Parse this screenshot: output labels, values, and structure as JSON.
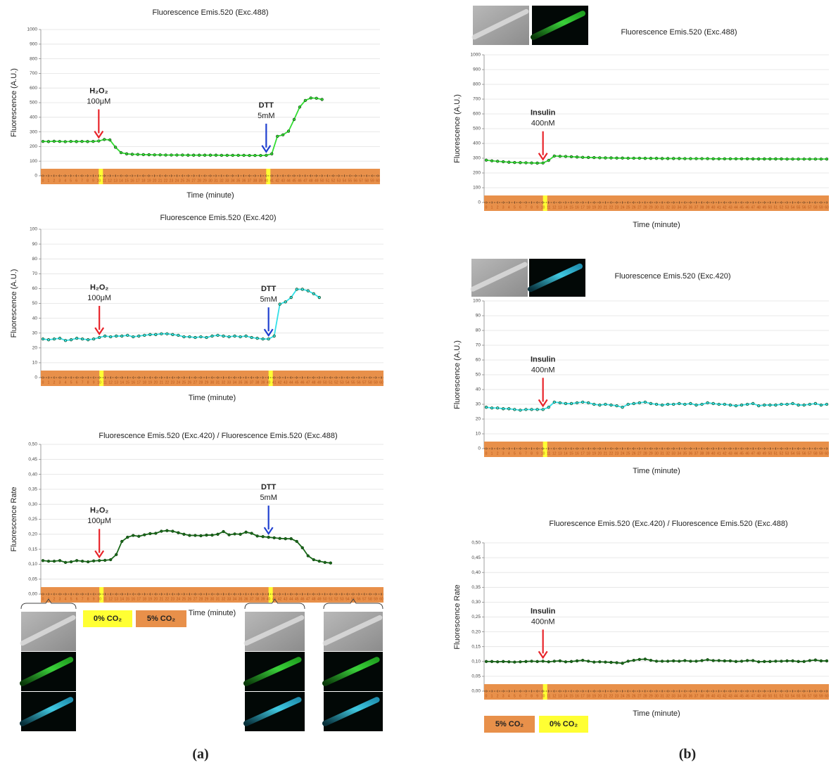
{
  "chart_data": [
    {
      "type": "line",
      "title": "Fluorescence Emis.520 (Exc.488)",
      "x_label": "Time (minute)",
      "y_label": "Fluorescence (A.U.)",
      "x": [
        0,
        1,
        2,
        3,
        4,
        5,
        6,
        7,
        8,
        9,
        10,
        11,
        12,
        13,
        14,
        15,
        16,
        17,
        18,
        19,
        20,
        21,
        22,
        23,
        24,
        25,
        26,
        27,
        28,
        29,
        30,
        31,
        32,
        33,
        34,
        35,
        36,
        37,
        38,
        39,
        40,
        41,
        42,
        43,
        44,
        45,
        46,
        47,
        48,
        49,
        50,
        51,
        52,
        53,
        54,
        55,
        56,
        57,
        58,
        59,
        60
      ],
      "xlim": [
        0,
        60
      ],
      "ylim": [
        0,
        1000
      ],
      "yticks": [
        0,
        100,
        200,
        300,
        400,
        500,
        600,
        700,
        800,
        900,
        1000
      ],
      "grid": true,
      "series": [
        {
          "color": "#33dd33",
          "values": [
            235,
            234,
            236,
            235,
            233,
            235,
            234,
            235,
            234,
            235,
            238,
            248,
            245,
            195,
            158,
            150,
            147,
            146,
            145,
            144,
            143,
            143,
            142,
            142,
            142,
            142,
            141,
            141,
            141,
            141,
            141,
            141,
            140,
            140,
            140,
            140,
            140,
            139,
            139,
            139,
            140,
            150,
            270,
            280,
            305,
            385,
            470,
            515,
            532,
            530,
            522,
            null,
            null,
            null,
            null,
            null,
            null,
            null,
            null,
            null,
            null
          ]
        }
      ],
      "band": {
        "color": "#e8904a",
        "markers": [
          10,
          40
        ],
        "marker_color": "#ffff33"
      },
      "annotations": [
        {
          "label": "H₂O₂",
          "detail": "100μM",
          "x": 10,
          "color": "#e8242a"
        },
        {
          "label": "DTT",
          "detail": "5mM",
          "x": 40,
          "color": "#2040d0"
        }
      ]
    },
    {
      "type": "line",
      "title": "Fluorescence Emis.520 (Exc.420)",
      "x_label": "Time (minute)",
      "y_label": "Fluorescence (A.U.)",
      "x": [
        0,
        1,
        2,
        3,
        4,
        5,
        6,
        7,
        8,
        9,
        10,
        11,
        12,
        13,
        14,
        15,
        16,
        17,
        18,
        19,
        20,
        21,
        22,
        23,
        24,
        25,
        26,
        27,
        28,
        29,
        30,
        31,
        32,
        33,
        34,
        35,
        36,
        37,
        38,
        39,
        40,
        41,
        42,
        43,
        44,
        45,
        46,
        47,
        48,
        49,
        50,
        51,
        52,
        53,
        54,
        55,
        56,
        57,
        58,
        59,
        60
      ],
      "xlim": [
        0,
        60
      ],
      "ylim": [
        0,
        100
      ],
      "yticks": [
        0,
        10,
        20,
        30,
        40,
        50,
        60,
        70,
        80,
        90,
        100
      ],
      "grid": true,
      "series": [
        {
          "color": "#33e0e8",
          "values": [
            26,
            25.5,
            26,
            26.5,
            25,
            25.5,
            26.5,
            26,
            25.5,
            26,
            27,
            28,
            27.5,
            28,
            28,
            28.5,
            27.5,
            28,
            28.5,
            29,
            29,
            29.5,
            29.5,
            29,
            28.5,
            27.5,
            27.5,
            27,
            27.5,
            27,
            28,
            28.5,
            28,
            27.5,
            28,
            27.5,
            28,
            27,
            26.5,
            26,
            26,
            28,
            49.5,
            51,
            54,
            59.5,
            59.5,
            58.5,
            56.5,
            54,
            null,
            null,
            null,
            null,
            null,
            null,
            null,
            null,
            null,
            null,
            null
          ]
        }
      ],
      "band": {
        "color": "#e8904a",
        "markers": [
          10,
          40
        ],
        "marker_color": "#ffff33"
      },
      "annotations": [
        {
          "label": "H₂O₂",
          "detail": "100μM",
          "x": 10,
          "color": "#e8242a"
        },
        {
          "label": "DTT",
          "detail": "5mM",
          "x": 40,
          "color": "#2040d0"
        }
      ]
    },
    {
      "type": "line",
      "title": "Fluorescence Emis.520 (Exc.420) / Fluorescence Emis.520 (Exc.488)",
      "x_label": "Time (minute)",
      "y_label": "Fluorescence Rate",
      "x": [
        0,
        1,
        2,
        3,
        4,
        5,
        6,
        7,
        8,
        9,
        10,
        11,
        12,
        13,
        14,
        15,
        16,
        17,
        18,
        19,
        20,
        21,
        22,
        23,
        24,
        25,
        26,
        27,
        28,
        29,
        30,
        31,
        32,
        33,
        34,
        35,
        36,
        37,
        38,
        39,
        40,
        41,
        42,
        43,
        44,
        45,
        46,
        47,
        48,
        49,
        50,
        51,
        52,
        53,
        54,
        55,
        56,
        57,
        58,
        59,
        60
      ],
      "xlim": [
        0,
        60
      ],
      "ylim": [
        0,
        0.5
      ],
      "yticks": [
        {
          "value": 0,
          "label": "0,00"
        },
        {
          "value": 0.05,
          "label": "0,05"
        },
        {
          "value": 0.1,
          "label": "0,10"
        },
        {
          "value": 0.15,
          "label": "0,15"
        },
        {
          "value": 0.2,
          "label": "0,20"
        },
        {
          "value": 0.25,
          "label": "0,25"
        },
        {
          "value": 0.3,
          "label": "0,30"
        },
        {
          "value": 0.35,
          "label": "0,35"
        },
        {
          "value": 0.4,
          "label": "0,40"
        },
        {
          "value": 0.45,
          "label": "0,45"
        },
        {
          "value": 0.5,
          "label": "0,50"
        }
      ],
      "grid": true,
      "series": [
        {
          "color": "#1a6a1a",
          "values": [
            0.112,
            0.11,
            0.11,
            0.112,
            0.106,
            0.108,
            0.112,
            0.11,
            0.108,
            0.111,
            0.112,
            0.113,
            0.115,
            0.132,
            0.176,
            0.19,
            0.196,
            0.193,
            0.198,
            0.202,
            0.203,
            0.21,
            0.212,
            0.21,
            0.205,
            0.2,
            0.196,
            0.196,
            0.195,
            0.197,
            0.197,
            0.2,
            0.209,
            0.198,
            0.201,
            0.2,
            0.207,
            0.203,
            0.194,
            0.192,
            0.19,
            0.188,
            0.186,
            0.185,
            0.185,
            0.176,
            0.155,
            0.128,
            0.115,
            0.11,
            0.106,
            0.104,
            null,
            null,
            null,
            null,
            null,
            null,
            null,
            null,
            null
          ]
        }
      ],
      "band": {
        "color": "#e8904a",
        "markers": [
          10,
          40
        ],
        "marker_color": "#ffff33"
      },
      "annotations": [
        {
          "label": "H₂O₂",
          "detail": "100μM",
          "x": 10,
          "color": "#e8242a"
        },
        {
          "label": "DTT",
          "detail": "5mM",
          "x": 40,
          "color": "#2040d0"
        }
      ]
    },
    {
      "type": "line",
      "title": "Fluorescence Emis.520 (Exc.488)",
      "x_label": "Time (minute)",
      "y_label": "Fluorescence (A.U.)",
      "x": [
        0,
        1,
        2,
        3,
        4,
        5,
        6,
        7,
        8,
        9,
        10,
        11,
        12,
        13,
        14,
        15,
        16,
        17,
        18,
        19,
        20,
        21,
        22,
        23,
        24,
        25,
        26,
        27,
        28,
        29,
        30,
        31,
        32,
        33,
        34,
        35,
        36,
        37,
        38,
        39,
        40,
        41,
        42,
        43,
        44,
        45,
        46,
        47,
        48,
        49,
        50,
        51,
        52,
        53,
        54,
        55,
        56,
        57,
        58,
        59,
        60
      ],
      "xlim": [
        0,
        60
      ],
      "ylim": [
        0,
        1000
      ],
      "yticks": [
        0,
        100,
        200,
        300,
        400,
        500,
        600,
        700,
        800,
        900,
        1000
      ],
      "grid": true,
      "series": [
        {
          "color": "#33dd33",
          "values": [
            287,
            282,
            279,
            276,
            273,
            271,
            270,
            269,
            268,
            267,
            268,
            285,
            315,
            313,
            312,
            310,
            308,
            306,
            305,
            304,
            303,
            302,
            302,
            301,
            301,
            300,
            300,
            300,
            299,
            299,
            299,
            298,
            298,
            298,
            298,
            297,
            297,
            297,
            297,
            297,
            296,
            296,
            296,
            296,
            296,
            296,
            296,
            295,
            295,
            295,
            295,
            295,
            295,
            294,
            294,
            294,
            294,
            294,
            294,
            294,
            294
          ]
        }
      ],
      "band": {
        "color": "#e8904a",
        "markers": [
          10
        ],
        "marker_color": "#ffff33"
      },
      "annotations": [
        {
          "label": "Insulin",
          "detail": "400nM",
          "x": 10,
          "color": "#e8242a"
        }
      ]
    },
    {
      "type": "line",
      "title": "Fluorescence Emis.520 (Exc.420)",
      "x_label": "Time (minute)",
      "y_label": "Fluorescence (A.U.)",
      "x": [
        0,
        1,
        2,
        3,
        4,
        5,
        6,
        7,
        8,
        9,
        10,
        11,
        12,
        13,
        14,
        15,
        16,
        17,
        18,
        19,
        20,
        21,
        22,
        23,
        24,
        25,
        26,
        27,
        28,
        29,
        30,
        31,
        32,
        33,
        34,
        35,
        36,
        37,
        38,
        39,
        40,
        41,
        42,
        43,
        44,
        45,
        46,
        47,
        48,
        49,
        50,
        51,
        52,
        53,
        54,
        55,
        56,
        57,
        58,
        59,
        60
      ],
      "xlim": [
        0,
        60
      ],
      "ylim": [
        0,
        100
      ],
      "yticks": [
        0,
        10,
        20,
        30,
        40,
        50,
        60,
        70,
        80,
        90,
        100
      ],
      "grid": true,
      "series": [
        {
          "color": "#33e0e8",
          "values": [
            28,
            27.5,
            27.5,
            27,
            27,
            26.5,
            26,
            26.5,
            26.5,
            26.5,
            26.5,
            28,
            31.5,
            31,
            30.5,
            30.5,
            31,
            31.5,
            31,
            30,
            29.5,
            30,
            29.5,
            29,
            28,
            30,
            30.5,
            31,
            31.5,
            30.5,
            30,
            29.5,
            30,
            30,
            30.5,
            30,
            30.5,
            29.5,
            30,
            31,
            30.5,
            30,
            30,
            29.5,
            29,
            29.5,
            30,
            30.5,
            29,
            29.5,
            29.5,
            29.5,
            30,
            30,
            30.5,
            29.5,
            29.5,
            30,
            30.5,
            29.5,
            30
          ]
        }
      ],
      "band": {
        "color": "#e8904a",
        "markers": [
          10
        ],
        "marker_color": "#ffff33"
      },
      "annotations": [
        {
          "label": "Insulin",
          "detail": "400nM",
          "x": 10,
          "color": "#e8242a"
        }
      ]
    },
    {
      "type": "line",
      "title": "Fluorescence Emis.520 (Exc.420) / Fluorescence Emis.520 (Exc.488)",
      "x_label": "Time (minute)",
      "y_label": "Fluorescence Rate",
      "x": [
        0,
        1,
        2,
        3,
        4,
        5,
        6,
        7,
        8,
        9,
        10,
        11,
        12,
        13,
        14,
        15,
        16,
        17,
        18,
        19,
        20,
        21,
        22,
        23,
        24,
        25,
        26,
        27,
        28,
        29,
        30,
        31,
        32,
        33,
        34,
        35,
        36,
        37,
        38,
        39,
        40,
        41,
        42,
        43,
        44,
        45,
        46,
        47,
        48,
        49,
        50,
        51,
        52,
        53,
        54,
        55,
        56,
        57,
        58,
        59,
        60
      ],
      "xlim": [
        0,
        60
      ],
      "ylim": [
        0,
        0.5
      ],
      "yticks": [
        {
          "value": 0,
          "label": "0,00"
        },
        {
          "value": 0.05,
          "label": "0,05"
        },
        {
          "value": 0.1,
          "label": "0,10"
        },
        {
          "value": 0.15,
          "label": "0,15"
        },
        {
          "value": 0.2,
          "label": "0,20"
        },
        {
          "value": 0.25,
          "label": "0,25"
        },
        {
          "value": 0.3,
          "label": "0,30"
        },
        {
          "value": 0.35,
          "label": "0,35"
        },
        {
          "value": 0.4,
          "label": "0,40"
        },
        {
          "value": 0.45,
          "label": "0,45"
        },
        {
          "value": 0.5,
          "label": "0,50"
        }
      ],
      "grid": true,
      "series": [
        {
          "color": "#1a6a1a",
          "values": [
            0.1,
            0.1,
            0.099,
            0.1,
            0.099,
            0.098,
            0.099,
            0.1,
            0.101,
            0.1,
            0.101,
            0.099,
            0.101,
            0.102,
            0.099,
            0.1,
            0.102,
            0.104,
            0.101,
            0.098,
            0.099,
            0.098,
            0.097,
            0.096,
            0.094,
            0.101,
            0.104,
            0.107,
            0.108,
            0.104,
            0.101,
            0.101,
            0.101,
            0.102,
            0.101,
            0.103,
            0.101,
            0.101,
            0.103,
            0.106,
            0.103,
            0.103,
            0.102,
            0.102,
            0.1,
            0.101,
            0.103,
            0.103,
            0.099,
            0.1,
            0.1,
            0.101,
            0.101,
            0.102,
            0.102,
            0.1,
            0.1,
            0.103,
            0.105,
            0.102,
            0.102
          ]
        }
      ],
      "band": {
        "color": "#e8904a",
        "markers": [
          10
        ],
        "marker_color": "#ffff33"
      },
      "annotations": [
        {
          "label": "Insulin",
          "detail": "400nM",
          "x": 10,
          "color": "#e8242a"
        }
      ]
    }
  ],
  "panels": [
    {
      "label": "(a)",
      "co2_legend": [
        {
          "label": "0% CO₂",
          "color": "#ffff33"
        },
        {
          "label": "5% CO₂",
          "color": "#e8904a"
        }
      ]
    },
    {
      "label": "(b)",
      "co2_legend": [
        {
          "label": "5% CO₂",
          "color": "#e8904a"
        },
        {
          "label": "0% CO₂",
          "color": "#ffff33"
        }
      ]
    }
  ]
}
